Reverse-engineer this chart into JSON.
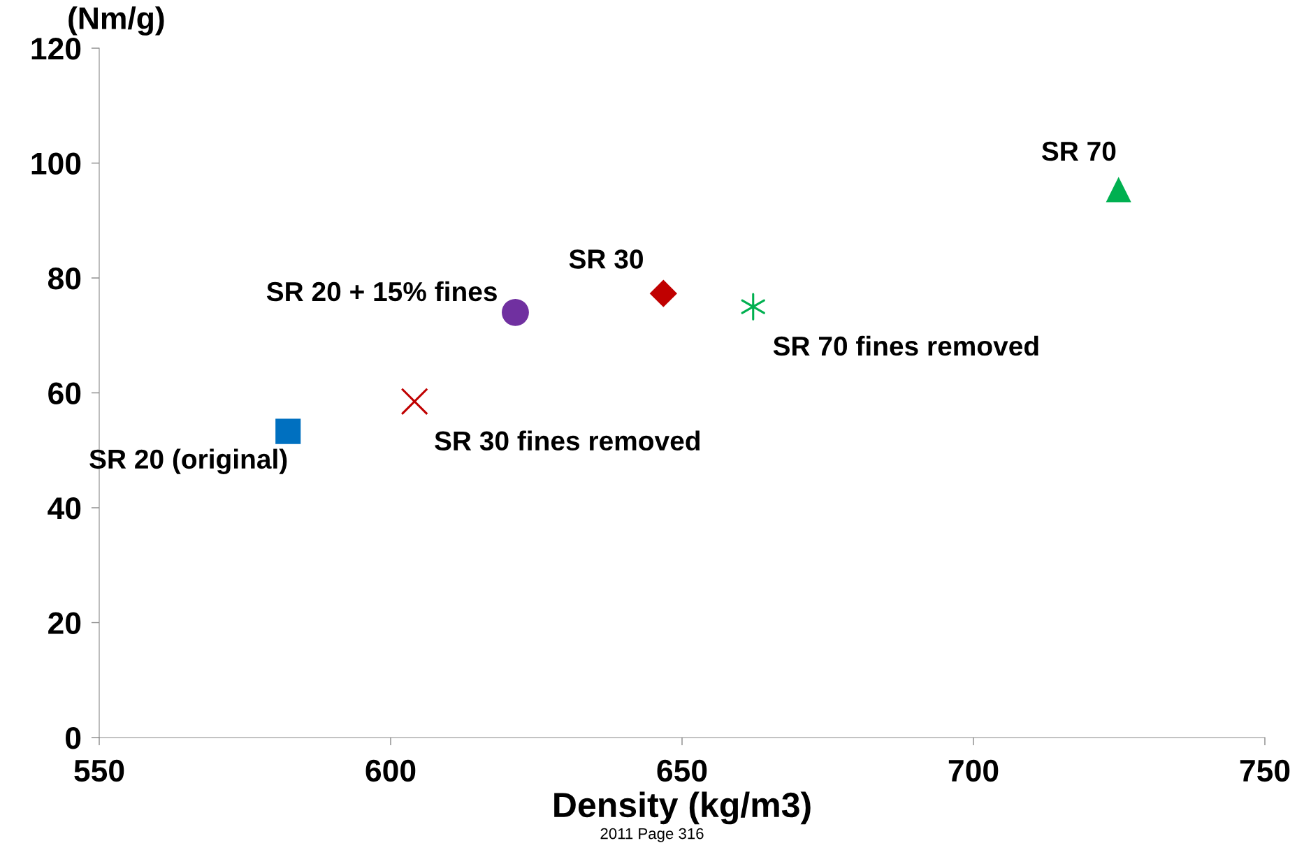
{
  "chart_data": {
    "type": "scatter",
    "xlabel": "Density (kg/m3)",
    "ylabel": "(Nm/g)",
    "xlim": [
      550,
      750
    ],
    "xticks": [
      550,
      600,
      650,
      700,
      750
    ],
    "ylim": [
      0,
      120
    ],
    "yticks": [
      0,
      20,
      40,
      60,
      80,
      100,
      120
    ],
    "grid": false,
    "legend": false,
    "series": [
      {
        "name": "SR 20 (original)",
        "color": "#0070c0",
        "marker": "square",
        "x": [
          582.4
        ],
        "values": [
          53.3
        ]
      },
      {
        "name": "SR 30 fines removed",
        "color": "#c00000",
        "marker": "cross",
        "x": [
          604.1
        ],
        "values": [
          58.5
        ]
      },
      {
        "name": "SR 20 + 15% fines",
        "color": "#7030a0",
        "marker": "circle",
        "x": [
          621.4
        ],
        "values": [
          74.0
        ]
      },
      {
        "name": "SR 30",
        "color": "#c00000",
        "marker": "diamond",
        "x": [
          646.8
        ],
        "values": [
          77.3
        ]
      },
      {
        "name": "SR 70 fines removed",
        "color": "#00b050",
        "marker": "cross",
        "x": [
          662.2
        ],
        "values": [
          75.0
        ]
      },
      {
        "name": "SR 70",
        "color": "#00b050",
        "marker": "triangle",
        "x": [
          724.9
        ],
        "values": [
          95.4
        ]
      }
    ],
    "annotations": [
      "2011 Page 316"
    ]
  }
}
